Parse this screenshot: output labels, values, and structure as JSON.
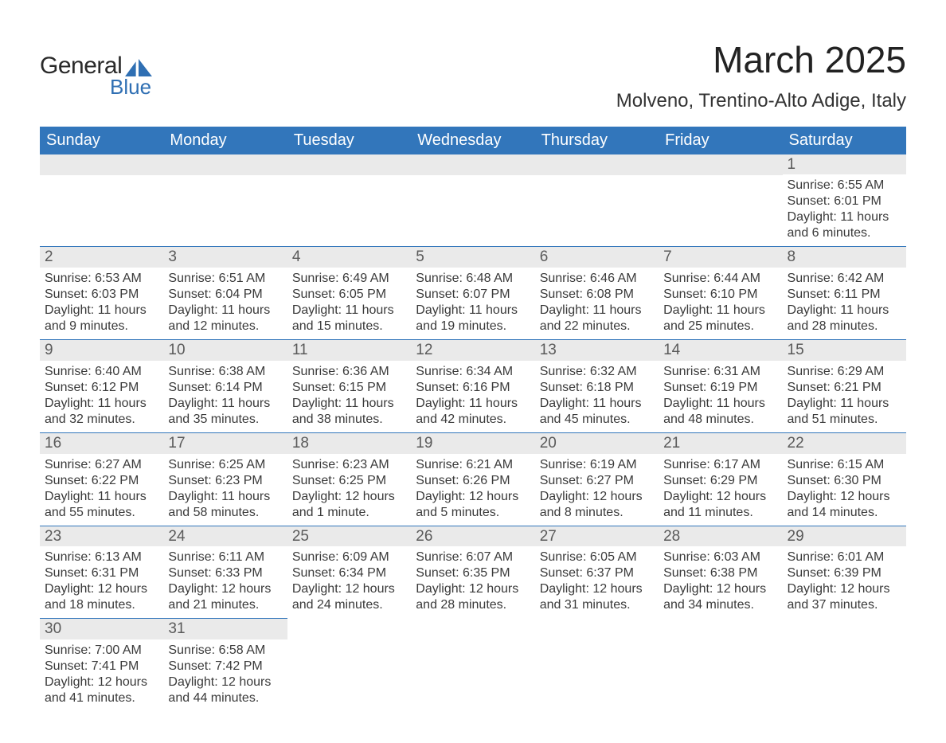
{
  "logo": {
    "line1": "General",
    "line2": "Blue",
    "accent_color": "#2f6fb3"
  },
  "header": {
    "month_title": "March 2025",
    "location": "Molveno, Trentino-Alto Adige, Italy"
  },
  "colors": {
    "header_bg": "#3276bb",
    "header_text": "#ffffff",
    "daybar_bg": "#eaeaea",
    "daybar_text": "#5a5a5a",
    "body_text": "#3a3a3a",
    "row_divider": "#3276bb",
    "page_bg": "#ffffff"
  },
  "typography": {
    "title_fontsize": 46,
    "location_fontsize": 24,
    "weekday_fontsize": 20,
    "daynum_fontsize": 19,
    "body_fontsize": 16
  },
  "calendar": {
    "type": "table",
    "columns": [
      "Sunday",
      "Monday",
      "Tuesday",
      "Wednesday",
      "Thursday",
      "Friday",
      "Saturday"
    ],
    "weeks": [
      [
        null,
        null,
        null,
        null,
        null,
        null,
        {
          "day": "1",
          "sunrise": "Sunrise: 6:55 AM",
          "sunset": "Sunset: 6:01 PM",
          "daylight": "Daylight: 11 hours and 6 minutes."
        }
      ],
      [
        {
          "day": "2",
          "sunrise": "Sunrise: 6:53 AM",
          "sunset": "Sunset: 6:03 PM",
          "daylight": "Daylight: 11 hours and 9 minutes."
        },
        {
          "day": "3",
          "sunrise": "Sunrise: 6:51 AM",
          "sunset": "Sunset: 6:04 PM",
          "daylight": "Daylight: 11 hours and 12 minutes."
        },
        {
          "day": "4",
          "sunrise": "Sunrise: 6:49 AM",
          "sunset": "Sunset: 6:05 PM",
          "daylight": "Daylight: 11 hours and 15 minutes."
        },
        {
          "day": "5",
          "sunrise": "Sunrise: 6:48 AM",
          "sunset": "Sunset: 6:07 PM",
          "daylight": "Daylight: 11 hours and 19 minutes."
        },
        {
          "day": "6",
          "sunrise": "Sunrise: 6:46 AM",
          "sunset": "Sunset: 6:08 PM",
          "daylight": "Daylight: 11 hours and 22 minutes."
        },
        {
          "day": "7",
          "sunrise": "Sunrise: 6:44 AM",
          "sunset": "Sunset: 6:10 PM",
          "daylight": "Daylight: 11 hours and 25 minutes."
        },
        {
          "day": "8",
          "sunrise": "Sunrise: 6:42 AM",
          "sunset": "Sunset: 6:11 PM",
          "daylight": "Daylight: 11 hours and 28 minutes."
        }
      ],
      [
        {
          "day": "9",
          "sunrise": "Sunrise: 6:40 AM",
          "sunset": "Sunset: 6:12 PM",
          "daylight": "Daylight: 11 hours and 32 minutes."
        },
        {
          "day": "10",
          "sunrise": "Sunrise: 6:38 AM",
          "sunset": "Sunset: 6:14 PM",
          "daylight": "Daylight: 11 hours and 35 minutes."
        },
        {
          "day": "11",
          "sunrise": "Sunrise: 6:36 AM",
          "sunset": "Sunset: 6:15 PM",
          "daylight": "Daylight: 11 hours and 38 minutes."
        },
        {
          "day": "12",
          "sunrise": "Sunrise: 6:34 AM",
          "sunset": "Sunset: 6:16 PM",
          "daylight": "Daylight: 11 hours and 42 minutes."
        },
        {
          "day": "13",
          "sunrise": "Sunrise: 6:32 AM",
          "sunset": "Sunset: 6:18 PM",
          "daylight": "Daylight: 11 hours and 45 minutes."
        },
        {
          "day": "14",
          "sunrise": "Sunrise: 6:31 AM",
          "sunset": "Sunset: 6:19 PM",
          "daylight": "Daylight: 11 hours and 48 minutes."
        },
        {
          "day": "15",
          "sunrise": "Sunrise: 6:29 AM",
          "sunset": "Sunset: 6:21 PM",
          "daylight": "Daylight: 11 hours and 51 minutes."
        }
      ],
      [
        {
          "day": "16",
          "sunrise": "Sunrise: 6:27 AM",
          "sunset": "Sunset: 6:22 PM",
          "daylight": "Daylight: 11 hours and 55 minutes."
        },
        {
          "day": "17",
          "sunrise": "Sunrise: 6:25 AM",
          "sunset": "Sunset: 6:23 PM",
          "daylight": "Daylight: 11 hours and 58 minutes."
        },
        {
          "day": "18",
          "sunrise": "Sunrise: 6:23 AM",
          "sunset": "Sunset: 6:25 PM",
          "daylight": "Daylight: 12 hours and 1 minute."
        },
        {
          "day": "19",
          "sunrise": "Sunrise: 6:21 AM",
          "sunset": "Sunset: 6:26 PM",
          "daylight": "Daylight: 12 hours and 5 minutes."
        },
        {
          "day": "20",
          "sunrise": "Sunrise: 6:19 AM",
          "sunset": "Sunset: 6:27 PM",
          "daylight": "Daylight: 12 hours and 8 minutes."
        },
        {
          "day": "21",
          "sunrise": "Sunrise: 6:17 AM",
          "sunset": "Sunset: 6:29 PM",
          "daylight": "Daylight: 12 hours and 11 minutes."
        },
        {
          "day": "22",
          "sunrise": "Sunrise: 6:15 AM",
          "sunset": "Sunset: 6:30 PM",
          "daylight": "Daylight: 12 hours and 14 minutes."
        }
      ],
      [
        {
          "day": "23",
          "sunrise": "Sunrise: 6:13 AM",
          "sunset": "Sunset: 6:31 PM",
          "daylight": "Daylight: 12 hours and 18 minutes."
        },
        {
          "day": "24",
          "sunrise": "Sunrise: 6:11 AM",
          "sunset": "Sunset: 6:33 PM",
          "daylight": "Daylight: 12 hours and 21 minutes."
        },
        {
          "day": "25",
          "sunrise": "Sunrise: 6:09 AM",
          "sunset": "Sunset: 6:34 PM",
          "daylight": "Daylight: 12 hours and 24 minutes."
        },
        {
          "day": "26",
          "sunrise": "Sunrise: 6:07 AM",
          "sunset": "Sunset: 6:35 PM",
          "daylight": "Daylight: 12 hours and 28 minutes."
        },
        {
          "day": "27",
          "sunrise": "Sunrise: 6:05 AM",
          "sunset": "Sunset: 6:37 PM",
          "daylight": "Daylight: 12 hours and 31 minutes."
        },
        {
          "day": "28",
          "sunrise": "Sunrise: 6:03 AM",
          "sunset": "Sunset: 6:38 PM",
          "daylight": "Daylight: 12 hours and 34 minutes."
        },
        {
          "day": "29",
          "sunrise": "Sunrise: 6:01 AM",
          "sunset": "Sunset: 6:39 PM",
          "daylight": "Daylight: 12 hours and 37 minutes."
        }
      ],
      [
        {
          "day": "30",
          "sunrise": "Sunrise: 7:00 AM",
          "sunset": "Sunset: 7:41 PM",
          "daylight": "Daylight: 12 hours and 41 minutes."
        },
        {
          "day": "31",
          "sunrise": "Sunrise: 6:58 AM",
          "sunset": "Sunset: 7:42 PM",
          "daylight": "Daylight: 12 hours and 44 minutes."
        },
        null,
        null,
        null,
        null,
        null
      ]
    ]
  }
}
